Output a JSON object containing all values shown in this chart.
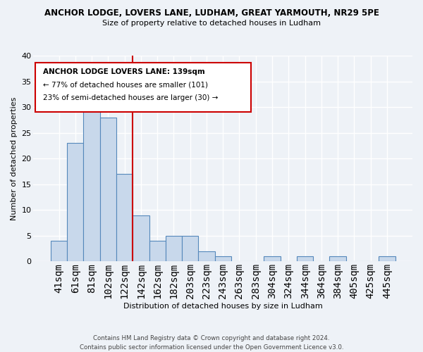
{
  "title": "ANCHOR LODGE, LOVERS LANE, LUDHAM, GREAT YARMOUTH, NR29 5PE",
  "subtitle": "Size of property relative to detached houses in Ludham",
  "xlabel": "Distribution of detached houses by size in Ludham",
  "ylabel": "Number of detached properties",
  "bar_color": "#c8d8eb",
  "bar_edge_color": "#5588bb",
  "background_color": "#eef2f7",
  "bins": [
    "41sqm",
    "61sqm",
    "81sqm",
    "102sqm",
    "122sqm",
    "142sqm",
    "162sqm",
    "182sqm",
    "203sqm",
    "223sqm",
    "243sqm",
    "263sqm",
    "283sqm",
    "304sqm",
    "324sqm",
    "344sqm",
    "364sqm",
    "384sqm",
    "405sqm",
    "425sqm",
    "445sqm"
  ],
  "values": [
    4,
    23,
    30,
    28,
    17,
    9,
    4,
    5,
    5,
    2,
    1,
    0,
    0,
    1,
    0,
    1,
    0,
    1,
    0,
    0,
    1
  ],
  "ylim": [
    0,
    40
  ],
  "yticks": [
    0,
    5,
    10,
    15,
    20,
    25,
    30,
    35,
    40
  ],
  "vline_position": 4.5,
  "vline_color": "#cc0000",
  "legend_title": "ANCHOR LODGE LOVERS LANE: 139sqm",
  "legend_line1": "← 77% of detached houses are smaller (101)",
  "legend_line2": "23% of semi-detached houses are larger (30) →",
  "footer_line1": "Contains HM Land Registry data © Crown copyright and database right 2024.",
  "footer_line2": "Contains public sector information licensed under the Open Government Licence v3.0."
}
